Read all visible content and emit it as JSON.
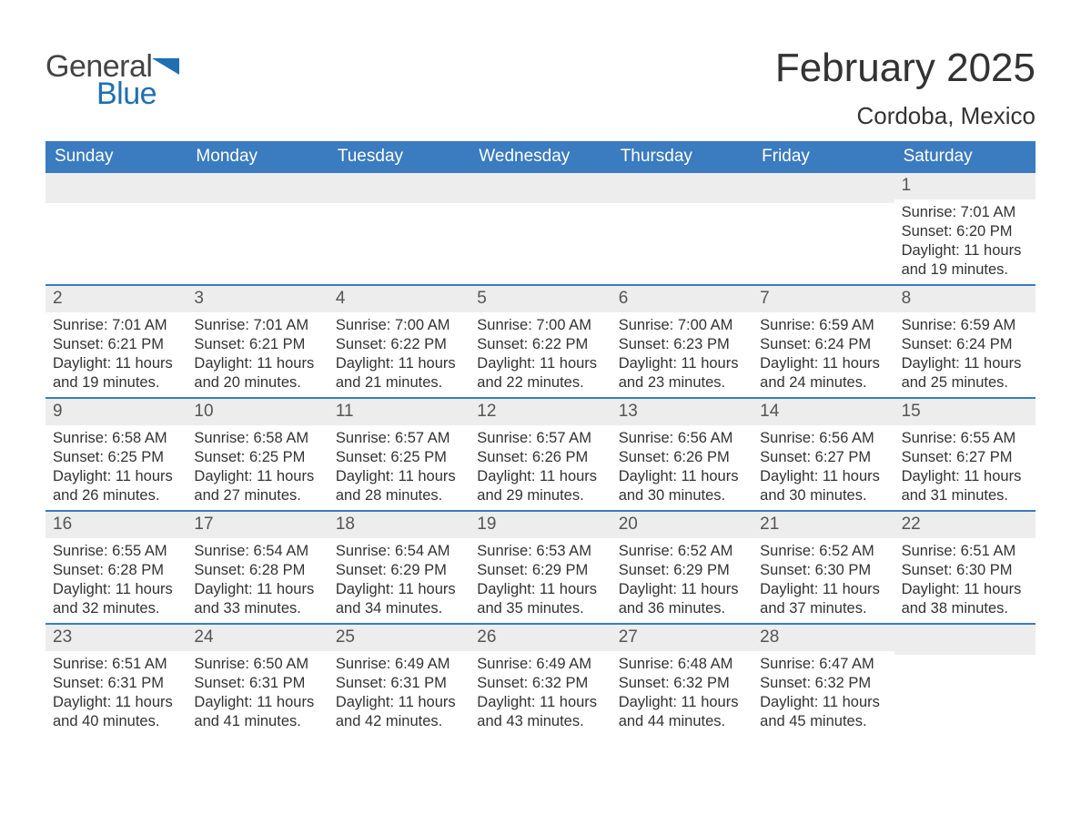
{
  "brand": {
    "word1": "General",
    "word2": "Blue",
    "logo_color": "#1f6fb2"
  },
  "title": "February 2025",
  "location": "Cordoba, Mexico",
  "colors": {
    "header_bg": "#3b7bbf",
    "header_text": "#ffffff",
    "week_border": "#3b7bbf",
    "daynum_bg": "#ededed",
    "daynum_text": "#555555",
    "body_text": "#333333",
    "page_bg": "#ffffff"
  },
  "dow": [
    "Sunday",
    "Monday",
    "Tuesday",
    "Wednesday",
    "Thursday",
    "Friday",
    "Saturday"
  ],
  "weeks": [
    [
      null,
      null,
      null,
      null,
      null,
      null,
      {
        "n": "1",
        "sr": "Sunrise: 7:01 AM",
        "ss": "Sunset: 6:20 PM",
        "d1": "Daylight: 11 hours",
        "d2": "and 19 minutes."
      }
    ],
    [
      {
        "n": "2",
        "sr": "Sunrise: 7:01 AM",
        "ss": "Sunset: 6:21 PM",
        "d1": "Daylight: 11 hours",
        "d2": "and 19 minutes."
      },
      {
        "n": "3",
        "sr": "Sunrise: 7:01 AM",
        "ss": "Sunset: 6:21 PM",
        "d1": "Daylight: 11 hours",
        "d2": "and 20 minutes."
      },
      {
        "n": "4",
        "sr": "Sunrise: 7:00 AM",
        "ss": "Sunset: 6:22 PM",
        "d1": "Daylight: 11 hours",
        "d2": "and 21 minutes."
      },
      {
        "n": "5",
        "sr": "Sunrise: 7:00 AM",
        "ss": "Sunset: 6:22 PM",
        "d1": "Daylight: 11 hours",
        "d2": "and 22 minutes."
      },
      {
        "n": "6",
        "sr": "Sunrise: 7:00 AM",
        "ss": "Sunset: 6:23 PM",
        "d1": "Daylight: 11 hours",
        "d2": "and 23 minutes."
      },
      {
        "n": "7",
        "sr": "Sunrise: 6:59 AM",
        "ss": "Sunset: 6:24 PM",
        "d1": "Daylight: 11 hours",
        "d2": "and 24 minutes."
      },
      {
        "n": "8",
        "sr": "Sunrise: 6:59 AM",
        "ss": "Sunset: 6:24 PM",
        "d1": "Daylight: 11 hours",
        "d2": "and 25 minutes."
      }
    ],
    [
      {
        "n": "9",
        "sr": "Sunrise: 6:58 AM",
        "ss": "Sunset: 6:25 PM",
        "d1": "Daylight: 11 hours",
        "d2": "and 26 minutes."
      },
      {
        "n": "10",
        "sr": "Sunrise: 6:58 AM",
        "ss": "Sunset: 6:25 PM",
        "d1": "Daylight: 11 hours",
        "d2": "and 27 minutes."
      },
      {
        "n": "11",
        "sr": "Sunrise: 6:57 AM",
        "ss": "Sunset: 6:25 PM",
        "d1": "Daylight: 11 hours",
        "d2": "and 28 minutes."
      },
      {
        "n": "12",
        "sr": "Sunrise: 6:57 AM",
        "ss": "Sunset: 6:26 PM",
        "d1": "Daylight: 11 hours",
        "d2": "and 29 minutes."
      },
      {
        "n": "13",
        "sr": "Sunrise: 6:56 AM",
        "ss": "Sunset: 6:26 PM",
        "d1": "Daylight: 11 hours",
        "d2": "and 30 minutes."
      },
      {
        "n": "14",
        "sr": "Sunrise: 6:56 AM",
        "ss": "Sunset: 6:27 PM",
        "d1": "Daylight: 11 hours",
        "d2": "and 30 minutes."
      },
      {
        "n": "15",
        "sr": "Sunrise: 6:55 AM",
        "ss": "Sunset: 6:27 PM",
        "d1": "Daylight: 11 hours",
        "d2": "and 31 minutes."
      }
    ],
    [
      {
        "n": "16",
        "sr": "Sunrise: 6:55 AM",
        "ss": "Sunset: 6:28 PM",
        "d1": "Daylight: 11 hours",
        "d2": "and 32 minutes."
      },
      {
        "n": "17",
        "sr": "Sunrise: 6:54 AM",
        "ss": "Sunset: 6:28 PM",
        "d1": "Daylight: 11 hours",
        "d2": "and 33 minutes."
      },
      {
        "n": "18",
        "sr": "Sunrise: 6:54 AM",
        "ss": "Sunset: 6:29 PM",
        "d1": "Daylight: 11 hours",
        "d2": "and 34 minutes."
      },
      {
        "n": "19",
        "sr": "Sunrise: 6:53 AM",
        "ss": "Sunset: 6:29 PM",
        "d1": "Daylight: 11 hours",
        "d2": "and 35 minutes."
      },
      {
        "n": "20",
        "sr": "Sunrise: 6:52 AM",
        "ss": "Sunset: 6:29 PM",
        "d1": "Daylight: 11 hours",
        "d2": "and 36 minutes."
      },
      {
        "n": "21",
        "sr": "Sunrise: 6:52 AM",
        "ss": "Sunset: 6:30 PM",
        "d1": "Daylight: 11 hours",
        "d2": "and 37 minutes."
      },
      {
        "n": "22",
        "sr": "Sunrise: 6:51 AM",
        "ss": "Sunset: 6:30 PM",
        "d1": "Daylight: 11 hours",
        "d2": "and 38 minutes."
      }
    ],
    [
      {
        "n": "23",
        "sr": "Sunrise: 6:51 AM",
        "ss": "Sunset: 6:31 PM",
        "d1": "Daylight: 11 hours",
        "d2": "and 40 minutes."
      },
      {
        "n": "24",
        "sr": "Sunrise: 6:50 AM",
        "ss": "Sunset: 6:31 PM",
        "d1": "Daylight: 11 hours",
        "d2": "and 41 minutes."
      },
      {
        "n": "25",
        "sr": "Sunrise: 6:49 AM",
        "ss": "Sunset: 6:31 PM",
        "d1": "Daylight: 11 hours",
        "d2": "and 42 minutes."
      },
      {
        "n": "26",
        "sr": "Sunrise: 6:49 AM",
        "ss": "Sunset: 6:32 PM",
        "d1": "Daylight: 11 hours",
        "d2": "and 43 minutes."
      },
      {
        "n": "27",
        "sr": "Sunrise: 6:48 AM",
        "ss": "Sunset: 6:32 PM",
        "d1": "Daylight: 11 hours",
        "d2": "and 44 minutes."
      },
      {
        "n": "28",
        "sr": "Sunrise: 6:47 AM",
        "ss": "Sunset: 6:32 PM",
        "d1": "Daylight: 11 hours",
        "d2": "and 45 minutes."
      },
      null
    ]
  ]
}
